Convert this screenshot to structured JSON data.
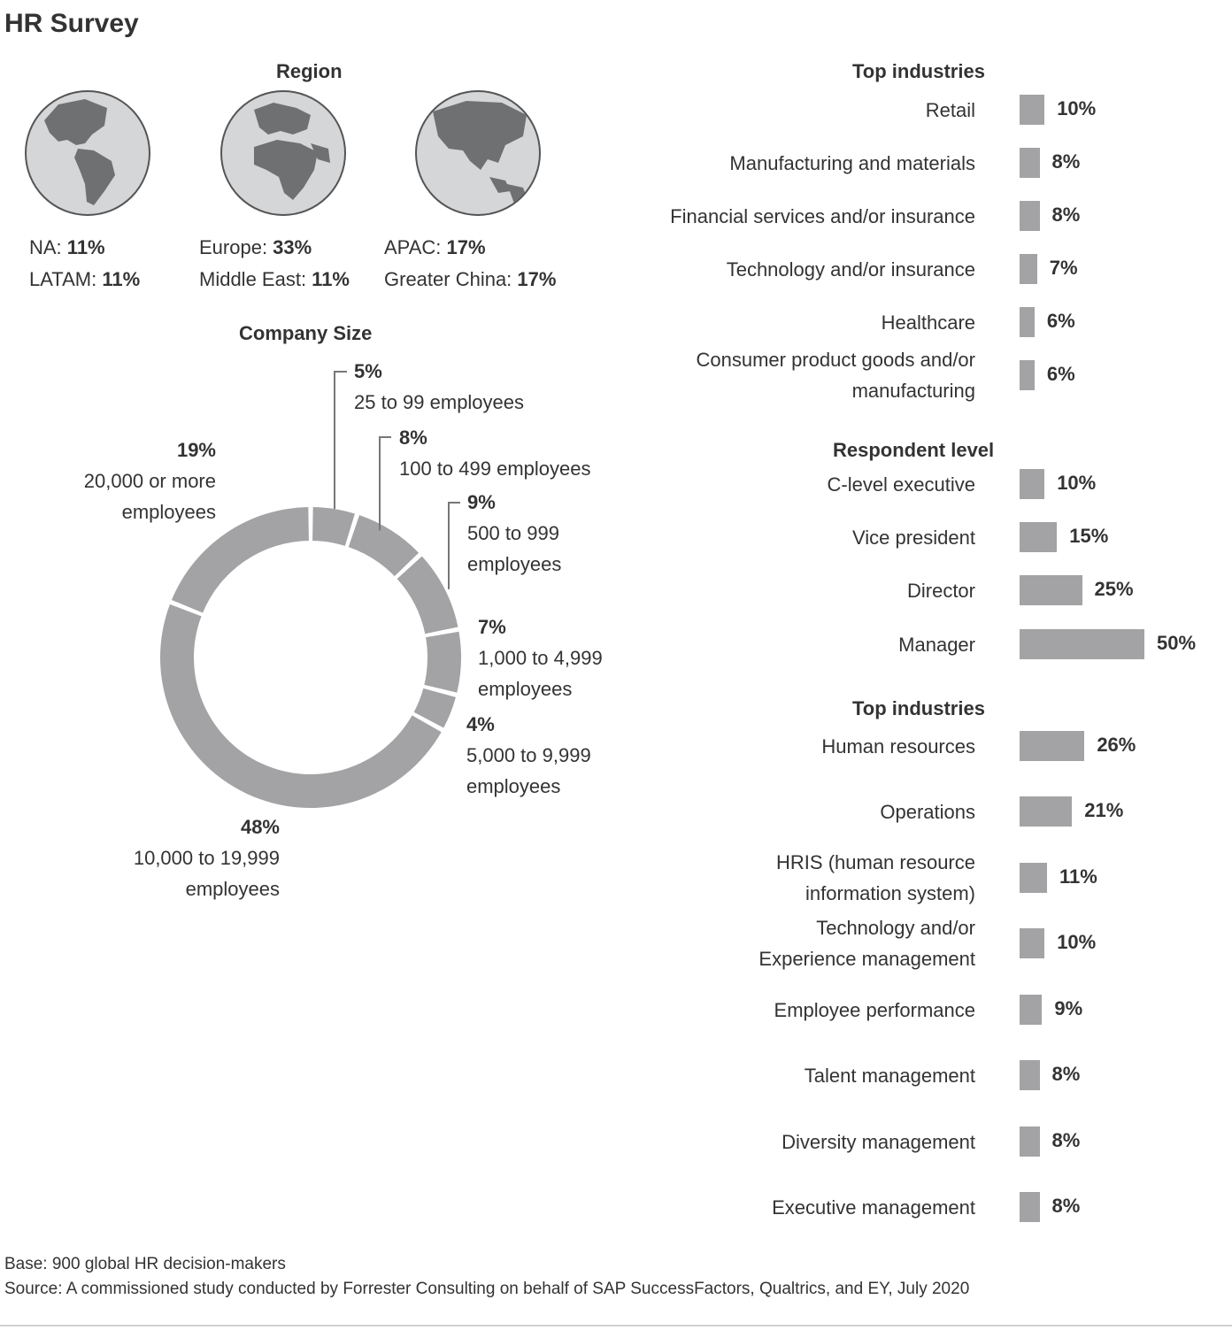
{
  "title": "HR Survey",
  "colors": {
    "bar": "#a3a3a5",
    "text": "#333333",
    "globe_ocean": "#d4d6d8",
    "globe_land": "#6f7072"
  },
  "region": {
    "title": "Region",
    "globes": [
      {
        "icon": "globe-americas-icon",
        "lines": [
          {
            "label": "NA:",
            "value": "11%"
          },
          {
            "label": "LATAM:",
            "value": "11%"
          }
        ]
      },
      {
        "icon": "globe-europe-africa-icon",
        "lines": [
          {
            "label": "Europe:",
            "value": "33%"
          },
          {
            "label": "Middle East:",
            "value": "11%"
          }
        ]
      },
      {
        "icon": "globe-asia-icon",
        "lines": [
          {
            "label": "APAC:",
            "value": "17%"
          },
          {
            "label": "Greater China:",
            "value": "17%"
          }
        ]
      }
    ]
  },
  "chart_data": [
    {
      "type": "pie",
      "title": "Company Size",
      "categories": [
        "25 to 99 employees",
        "100 to 499 employees",
        "500 to 999 employees",
        "1,000 to 4,999 employees",
        "5,000 to 9,999 employees",
        "10,000 to 19,999 employees",
        "20,000 or more employees"
      ],
      "values": [
        5,
        8,
        9,
        7,
        4,
        48,
        19
      ],
      "value_labels": [
        "5%",
        "8%",
        "9%",
        "7%",
        "4%",
        "48%",
        "19%"
      ],
      "style": "donut"
    },
    {
      "type": "bar",
      "title": "Top industries",
      "orientation": "horizontal",
      "categories": [
        "Retail",
        "Manufacturing and materials",
        "Financial services and/or insurance",
        "Technology and/or insurance",
        "Healthcare",
        "Consumer product goods and/or manufacturing"
      ],
      "values": [
        10,
        8,
        8,
        7,
        6,
        6
      ],
      "value_labels": [
        "10%",
        "8%",
        "8%",
        "7%",
        "6%",
        "6%"
      ]
    },
    {
      "type": "bar",
      "title": "Respondent level",
      "orientation": "horizontal",
      "categories": [
        "C-level executive",
        "Vice president",
        "Director",
        "Manager"
      ],
      "values": [
        10,
        15,
        25,
        50
      ],
      "value_labels": [
        "10%",
        "15%",
        "25%",
        "50%"
      ]
    },
    {
      "type": "bar",
      "title": "Top industries",
      "orientation": "horizontal",
      "categories": [
        "Human resources",
        "Operations",
        "HRIS (human resource information system)",
        "Technology and/or Experience management",
        "Employee performance",
        "Talent management",
        "Diversity management",
        "Executive management"
      ],
      "values": [
        26,
        21,
        11,
        10,
        9,
        8,
        8,
        8
      ],
      "value_labels": [
        "26%",
        "21%",
        "11%",
        "10%",
        "9%",
        "8%",
        "8%",
        "8%"
      ]
    }
  ],
  "donut_label_lines": [
    [
      "5%",
      "25 to 99 employees"
    ],
    [
      "8%",
      "100 to 499 employees"
    ],
    [
      "9%",
      "500 to 999",
      "employees"
    ],
    [
      "7%",
      "1,000 to 4,999",
      "employees"
    ],
    [
      "4%",
      "5,000 to 9,999",
      "employees"
    ],
    [
      "48%",
      "10,000 to 19,999",
      "employees"
    ],
    [
      "19%",
      "20,000 or more",
      "employees"
    ]
  ],
  "bar_label_lines": [
    [
      [
        "Retail"
      ],
      [
        "Manufacturing and materials"
      ],
      [
        "Financial services and/or insurance"
      ],
      [
        "Technology and/or insurance"
      ],
      [
        "Healthcare"
      ],
      [
        "Consumer product goods and/or",
        "manufacturing"
      ]
    ],
    [
      [
        "C-level executive"
      ],
      [
        "Vice president"
      ],
      [
        "Director"
      ],
      [
        "Manager"
      ]
    ],
    [
      [
        "Human resources"
      ],
      [
        "Operations"
      ],
      [
        "HRIS (human resource",
        "information system)"
      ],
      [
        "Technology and/or",
        "Experience management"
      ],
      [
        "Employee performance"
      ],
      [
        "Talent management"
      ],
      [
        "Diversity management"
      ],
      [
        "Executive management"
      ]
    ]
  ],
  "footer": {
    "base": "Base: 900 global HR decision-makers",
    "source": "Source: A commissioned study conducted by Forrester Consulting on behalf of SAP SuccessFactors, Qualtrics, and EY, July 2020"
  }
}
